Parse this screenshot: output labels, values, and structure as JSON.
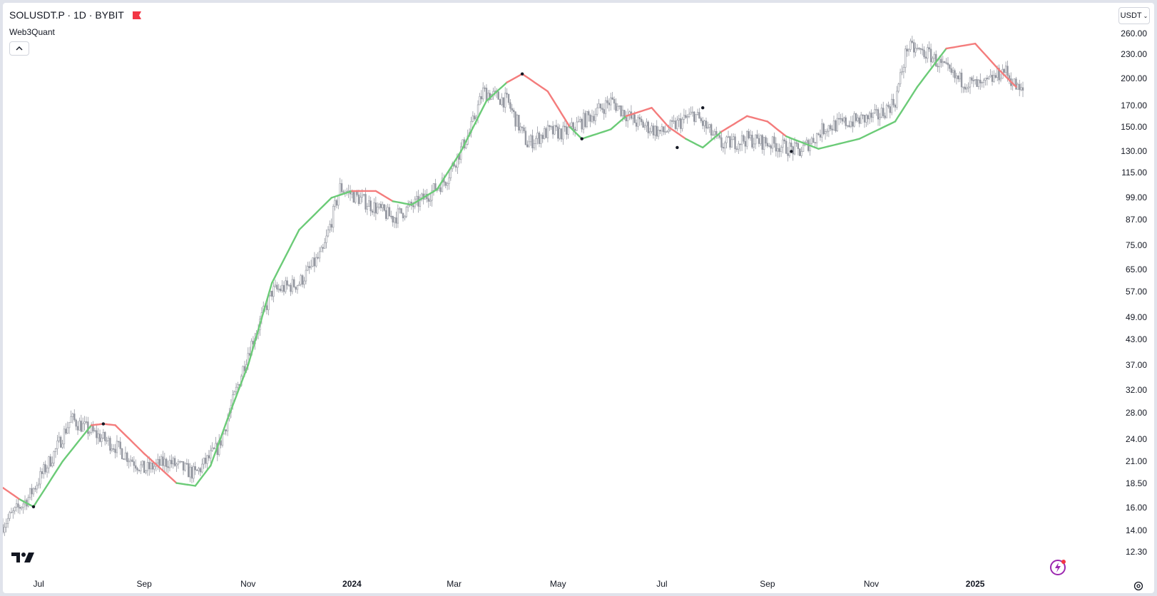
{
  "header": {
    "symbol_line": "SOLUSDT.P · 1D · BYBIT",
    "flag_color": "#f23645",
    "indicator": "Web3Quant",
    "collapse_icon": "chevron-up-icon"
  },
  "currency": {
    "label": "USDT",
    "icon": "chevron-down-icon"
  },
  "icons": {
    "logo": "tradingview-logo",
    "flash": "flash-icon",
    "settings": "gear-icon"
  },
  "colors": {
    "candle": "#9598a1",
    "bull": "#6bcb77",
    "bear": "#f47c7c",
    "marker": "#131722"
  },
  "price_axis": [
    "260.00",
    "230.00",
    "200.00",
    "170.00",
    "150.00",
    "130.00",
    "115.00",
    "99.00",
    "87.00",
    "75.00",
    "65.00",
    "57.00",
    "49.00",
    "43.00",
    "37.00",
    "32.00",
    "28.00",
    "24.00",
    "21.00",
    "18.50",
    "16.00",
    "14.00",
    "12.30"
  ],
  "time_axis": [
    {
      "label": "Jul",
      "date": "2023-07-01",
      "bold": false
    },
    {
      "label": "Sep",
      "date": "2023-09-01",
      "bold": false
    },
    {
      "label": "Nov",
      "date": "2023-11-01",
      "bold": false
    },
    {
      "label": "2024",
      "date": "2024-01-01",
      "bold": true
    },
    {
      "label": "Mar",
      "date": "2024-03-01",
      "bold": false
    },
    {
      "label": "May",
      "date": "2024-05-01",
      "bold": false
    },
    {
      "label": "Jul",
      "date": "2024-07-01",
      "bold": false
    },
    {
      "label": "Sep",
      "date": "2024-09-01",
      "bold": false
    },
    {
      "label": "Nov",
      "date": "2024-11-01",
      "bold": false
    },
    {
      "label": "2025",
      "date": "2025-01-01",
      "bold": true
    }
  ],
  "chart_data": {
    "type": "line",
    "scale": "log",
    "ylim": [
      12.3,
      260
    ],
    "x_range": [
      "2023-06-10",
      "2025-01-29"
    ],
    "grid": false,
    "price_series": {
      "name": "SOLUSDT.P",
      "x": [
        "2023-06-10",
        "2023-06-25",
        "2023-07-10",
        "2023-07-20",
        "2023-08-01",
        "2023-08-15",
        "2023-09-01",
        "2023-09-15",
        "2023-10-01",
        "2023-10-15",
        "2023-11-01",
        "2023-11-15",
        "2023-12-01",
        "2023-12-15",
        "2023-12-25",
        "2024-01-10",
        "2024-01-25",
        "2024-02-10",
        "2024-02-25",
        "2024-03-10",
        "2024-03-18",
        "2024-04-01",
        "2024-04-13",
        "2024-04-25",
        "2024-05-05",
        "2024-05-20",
        "2024-06-01",
        "2024-06-15",
        "2024-07-01",
        "2024-07-20",
        "2024-08-05",
        "2024-08-20",
        "2024-09-07",
        "2024-09-20",
        "2024-10-05",
        "2024-10-20",
        "2024-11-05",
        "2024-11-15",
        "2024-11-22",
        "2024-12-05",
        "2024-12-20",
        "2025-01-05",
        "2025-01-18",
        "2025-01-27"
      ],
      "values": [
        14.5,
        17,
        22,
        27,
        25,
        23,
        20,
        21,
        19.5,
        23,
        40,
        57,
        60,
        72,
        105,
        96,
        88,
        97,
        110,
        145,
        185,
        175,
        136,
        146,
        145,
        160,
        175,
        155,
        145,
        162,
        135,
        140,
        135,
        130,
        150,
        155,
        160,
        175,
        240,
        230,
        200,
        190,
        210,
        185
      ]
    },
    "trend_series": {
      "name": "Web3Quant",
      "x": [
        "2023-06-10",
        "2023-06-20",
        "2023-06-28",
        "2023-07-15",
        "2023-08-01",
        "2023-08-08",
        "2023-08-15",
        "2023-09-01",
        "2023-09-20",
        "2023-10-01",
        "2023-10-10",
        "2023-10-20",
        "2023-11-01",
        "2023-11-15",
        "2023-12-01",
        "2023-12-20",
        "2024-01-01",
        "2024-01-15",
        "2024-01-25",
        "2024-02-05",
        "2024-02-20",
        "2024-03-05",
        "2024-03-20",
        "2024-04-01",
        "2024-04-10",
        "2024-04-25",
        "2024-05-08",
        "2024-05-15",
        "2024-06-01",
        "2024-06-10",
        "2024-06-25",
        "2024-07-05",
        "2024-07-15",
        "2024-07-25",
        "2024-08-05",
        "2024-08-20",
        "2024-09-01",
        "2024-09-12",
        "2024-10-01",
        "2024-10-25",
        "2024-11-15",
        "2024-11-28",
        "2024-12-15",
        "2025-01-01",
        "2025-01-15",
        "2025-01-25"
      ],
      "values": [
        18,
        16.8,
        16.1,
        21,
        26,
        26.2,
        26,
        22,
        18.5,
        18.2,
        20.5,
        27,
        37,
        60,
        82,
        99,
        103,
        103,
        97,
        95,
        104,
        130,
        175,
        195,
        205,
        185,
        150,
        140,
        148,
        160,
        168,
        150,
        140,
        133,
        146,
        160,
        155,
        142,
        132,
        140,
        155,
        190,
        238,
        245,
        210,
        190
      ],
      "trend": [
        "down",
        "down",
        "up",
        "up",
        "up",
        "down",
        "down",
        "down",
        "down",
        "up",
        "up",
        "up",
        "up",
        "up",
        "up",
        "up",
        "up",
        "down",
        "down",
        "up",
        "up",
        "up",
        "up",
        "up",
        "down",
        "down",
        "down",
        "up",
        "up",
        "up",
        "down",
        "down",
        "down",
        "up",
        "up",
        "down",
        "down",
        "down",
        "up",
        "up",
        "up",
        "up",
        "up",
        "down",
        "down",
        "down"
      ]
    },
    "markers": [
      {
        "x": "2023-06-28",
        "y": 16.1
      },
      {
        "x": "2023-08-08",
        "y": 26.2
      },
      {
        "x": "2024-04-10",
        "y": 205
      },
      {
        "x": "2024-05-15",
        "y": 140
      },
      {
        "x": "2024-07-10",
        "y": 133
      },
      {
        "x": "2024-07-25",
        "y": 168
      },
      {
        "x": "2024-09-15",
        "y": 130
      }
    ]
  }
}
